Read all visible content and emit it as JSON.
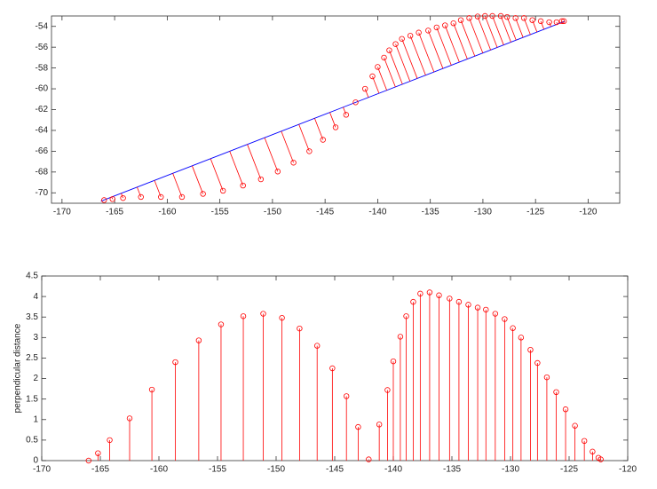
{
  "chart_data": [
    {
      "type": "scatter",
      "x": [
        -166.0,
        -165.2,
        -164.2,
        -162.5,
        -160.6,
        -158.6,
        -156.6,
        -154.7,
        -152.8,
        -151.1,
        -149.5,
        -148.0,
        -146.5,
        -145.2,
        -144.0,
        -143.0,
        -142.1,
        -141.2,
        -140.5,
        -140.0,
        -139.4,
        -138.9,
        -138.3,
        -137.7,
        -136.9,
        -136.1,
        -135.2,
        -134.4,
        -133.6,
        -132.8,
        -132.1,
        -131.3,
        -130.5,
        -129.8,
        -129.1,
        -128.3,
        -127.7,
        -126.9,
        -126.1,
        -125.3,
        -124.5,
        -123.7,
        -123.0,
        -122.5,
        -122.3
      ],
      "y": [
        -70.7,
        -70.6,
        -70.5,
        -70.4,
        -70.4,
        -70.4,
        -70.1,
        -69.8,
        -69.3,
        -68.7,
        -67.95,
        -67.1,
        -66.0,
        -64.9,
        -63.7,
        -62.5,
        -61.3,
        -60.0,
        -58.8,
        -57.9,
        -57.0,
        -56.3,
        -55.7,
        -55.2,
        -54.9,
        -54.6,
        -54.4,
        -54.1,
        -53.9,
        -53.7,
        -53.4,
        -53.2,
        -53.05,
        -53.0,
        -53.0,
        -53.0,
        -53.1,
        -53.2,
        -53.2,
        -53.4,
        -53.5,
        -53.6,
        -53.6,
        -53.5,
        -53.5
      ],
      "color": "#ff0000",
      "line": {
        "color": "#0000ff",
        "x": [
          -166.3,
          -122.2
        ],
        "y": [
          -70.8,
          -53.5
        ]
      },
      "xlim": [
        -171,
        -117
      ],
      "ylim": [
        -71,
        -53
      ],
      "xticks": [
        -170,
        -165,
        -160,
        -155,
        -150,
        -145,
        -140,
        -135,
        -130,
        -125,
        -120
      ],
      "yticks": [
        -70,
        -68,
        -66,
        -64,
        -62,
        -60,
        -58,
        -56,
        -54
      ]
    },
    {
      "type": "stem",
      "ylabel": "perpendicular distance",
      "x": [
        -166.0,
        -165.2,
        -164.2,
        -162.5,
        -160.6,
        -158.6,
        -156.6,
        -154.7,
        -152.8,
        -151.1,
        -149.5,
        -148.0,
        -146.5,
        -145.2,
        -144.0,
        -143.0,
        -142.1,
        -141.2,
        -140.5,
        -140.0,
        -139.4,
        -138.9,
        -138.3,
        -137.7,
        -136.9,
        -136.1,
        -135.2,
        -134.4,
        -133.6,
        -132.8,
        -132.1,
        -131.3,
        -130.5,
        -129.8,
        -129.1,
        -128.3,
        -127.7,
        -126.9,
        -126.1,
        -125.3,
        -124.5,
        -123.7,
        -123.0,
        -122.5,
        -122.3
      ],
      "values": [
        0,
        0.18,
        0.5,
        1.03,
        1.73,
        2.4,
        2.93,
        3.32,
        3.52,
        3.58,
        3.48,
        3.22,
        2.8,
        2.25,
        1.57,
        0.82,
        0.03,
        0.88,
        1.72,
        2.42,
        3.02,
        3.52,
        3.87,
        4.07,
        4.1,
        4.03,
        3.95,
        3.87,
        3.8,
        3.73,
        3.68,
        3.58,
        3.45,
        3.23,
        3.0,
        2.7,
        2.38,
        2.03,
        1.67,
        1.25,
        0.85,
        0.48,
        0.22,
        0.07,
        0.03
      ],
      "color": "#ff0000",
      "xlim": [
        -170,
        -120
      ],
      "ylim": [
        0,
        4.5
      ],
      "xticks": [
        -170,
        -165,
        -160,
        -155,
        -150,
        -145,
        -140,
        -135,
        -130,
        -125,
        -120
      ],
      "yticks": [
        0,
        0.5,
        1,
        1.5,
        2,
        2.5,
        3,
        3.5,
        4,
        4.5
      ]
    }
  ]
}
